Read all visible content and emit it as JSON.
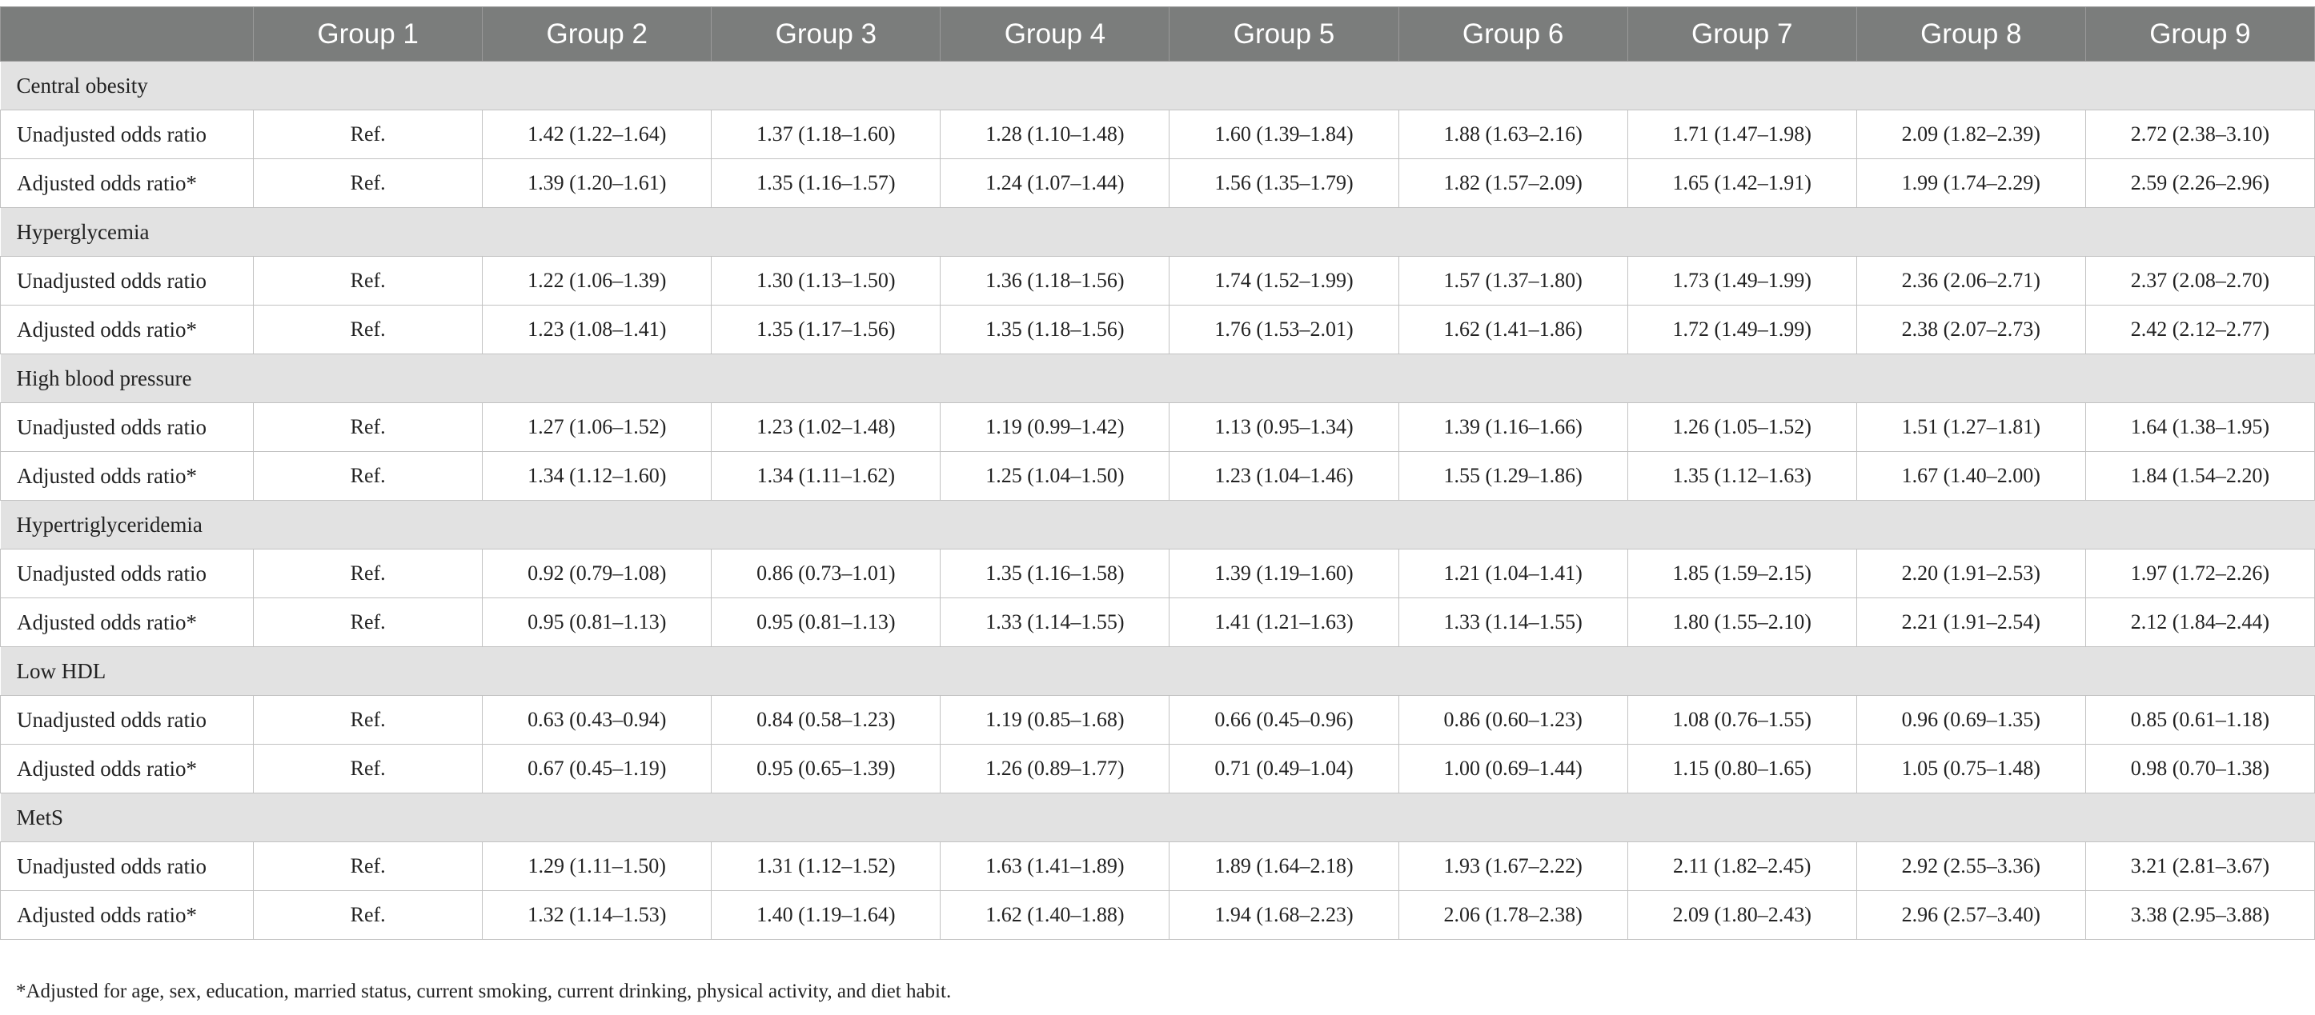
{
  "table": {
    "header": {
      "corner": "",
      "groups": [
        "Group 1",
        "Group 2",
        "Group 3",
        "Group 4",
        "Group 5",
        "Group 6",
        "Group 7",
        "Group 8",
        "Group 9"
      ]
    },
    "sections": [
      {
        "title": "Central obesity",
        "rows": [
          {
            "label": "Unadjusted odds ratio",
            "values": [
              "Ref.",
              "1.42 (1.22–1.64)",
              "1.37 (1.18–1.60)",
              "1.28 (1.10–1.48)",
              "1.60 (1.39–1.84)",
              "1.88 (1.63–2.16)",
              "1.71 (1.47–1.98)",
              "2.09 (1.82–2.39)",
              "2.72 (2.38–3.10)"
            ]
          },
          {
            "label": "Adjusted odds ratio*",
            "values": [
              "Ref.",
              "1.39 (1.20–1.61)",
              "1.35 (1.16–1.57)",
              "1.24 (1.07–1.44)",
              "1.56 (1.35–1.79)",
              "1.82 (1.57–2.09)",
              "1.65 (1.42–1.91)",
              "1.99 (1.74–2.29)",
              "2.59 (2.26–2.96)"
            ]
          }
        ]
      },
      {
        "title": "Hyperglycemia",
        "rows": [
          {
            "label": "Unadjusted odds ratio",
            "values": [
              "Ref.",
              "1.22 (1.06–1.39)",
              "1.30 (1.13–1.50)",
              "1.36 (1.18–1.56)",
              "1.74 (1.52–1.99)",
              "1.57 (1.37–1.80)",
              "1.73 (1.49–1.99)",
              "2.36 (2.06–2.71)",
              "2.37 (2.08–2.70)"
            ]
          },
          {
            "label": "Adjusted odds ratio*",
            "values": [
              "Ref.",
              "1.23 (1.08–1.41)",
              "1.35 (1.17–1.56)",
              "1.35 (1.18–1.56)",
              "1.76 (1.53–2.01)",
              "1.62 (1.41–1.86)",
              "1.72 (1.49–1.99)",
              "2.38 (2.07–2.73)",
              "2.42 (2.12–2.77)"
            ]
          }
        ]
      },
      {
        "title": "High blood pressure",
        "rows": [
          {
            "label": "Unadjusted odds ratio",
            "values": [
              "Ref.",
              "1.27 (1.06–1.52)",
              "1.23 (1.02–1.48)",
              "1.19 (0.99–1.42)",
              "1.13 (0.95–1.34)",
              "1.39 (1.16–1.66)",
              "1.26 (1.05–1.52)",
              "1.51 (1.27–1.81)",
              "1.64 (1.38–1.95)"
            ]
          },
          {
            "label": "Adjusted odds ratio*",
            "values": [
              "Ref.",
              "1.34 (1.12–1.60)",
              "1.34 (1.11–1.62)",
              "1.25 (1.04–1.50)",
              "1.23 (1.04–1.46)",
              "1.55 (1.29–1.86)",
              "1.35 (1.12–1.63)",
              "1.67 (1.40–2.00)",
              "1.84 (1.54–2.20)"
            ]
          }
        ]
      },
      {
        "title": "Hypertriglyceridemia",
        "rows": [
          {
            "label": "Unadjusted odds ratio",
            "values": [
              "Ref.",
              "0.92 (0.79–1.08)",
              "0.86 (0.73–1.01)",
              "1.35 (1.16–1.58)",
              "1.39 (1.19–1.60)",
              "1.21 (1.04–1.41)",
              "1.85 (1.59–2.15)",
              "2.20 (1.91–2.53)",
              "1.97 (1.72–2.26)"
            ]
          },
          {
            "label": "Adjusted odds ratio*",
            "values": [
              "Ref.",
              "0.95 (0.81–1.13)",
              "0.95 (0.81–1.13)",
              "1.33 (1.14–1.55)",
              "1.41 (1.21–1.63)",
              "1.33 (1.14–1.55)",
              "1.80 (1.55–2.10)",
              "2.21 (1.91–2.54)",
              "2.12 (1.84–2.44)"
            ]
          }
        ]
      },
      {
        "title": "Low HDL",
        "rows": [
          {
            "label": "Unadjusted odds ratio",
            "values": [
              "Ref.",
              "0.63 (0.43–0.94)",
              "0.84 (0.58–1.23)",
              "1.19 (0.85–1.68)",
              "0.66 (0.45–0.96)",
              "0.86 (0.60–1.23)",
              "1.08 (0.76–1.55)",
              "0.96 (0.69–1.35)",
              "0.85 (0.61–1.18)"
            ]
          },
          {
            "label": "Adjusted odds ratio*",
            "values": [
              "Ref.",
              "0.67 (0.45–1.19)",
              "0.95 (0.65–1.39)",
              "1.26 (0.89–1.77)",
              "0.71 (0.49–1.04)",
              "1.00 (0.69–1.44)",
              "1.15 (0.80–1.65)",
              "1.05 (0.75–1.48)",
              "0.98 (0.70–1.38)"
            ]
          }
        ]
      },
      {
        "title": "MetS",
        "rows": [
          {
            "label": "Unadjusted odds ratio",
            "values": [
              "Ref.",
              "1.29 (1.11–1.50)",
              "1.31 (1.12–1.52)",
              "1.63 (1.41–1.89)",
              "1.89 (1.64–2.18)",
              "1.93 (1.67–2.22)",
              "2.11 (1.82–2.45)",
              "2.92 (2.55–3.36)",
              "3.21 (2.81–3.67)"
            ]
          },
          {
            "label": "Adjusted odds ratio*",
            "values": [
              "Ref.",
              "1.32 (1.14–1.53)",
              "1.40 (1.19–1.64)",
              "1.62 (1.40–1.88)",
              "1.94 (1.68–2.23)",
              "2.06 (1.78–2.38)",
              "2.09 (1.80–2.43)",
              "2.96 (2.57–3.40)",
              "3.38 (2.95–3.88)"
            ]
          }
        ]
      }
    ]
  },
  "footnote": "*Adjusted for age, sex, education, married status, current smoking, current drinking, physical activity, and diet habit."
}
